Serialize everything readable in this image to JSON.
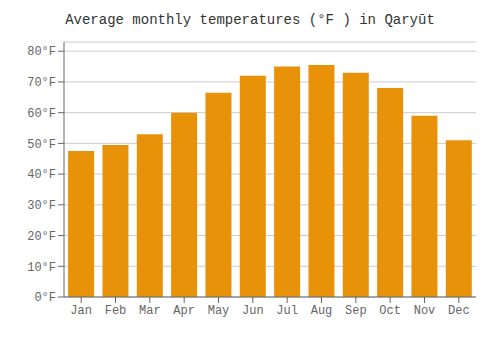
{
  "chart_data": {
    "type": "bar",
    "title": "Average monthly temperatures (°F ) in Qaryūt",
    "categories": [
      "Jan",
      "Feb",
      "Mar",
      "Apr",
      "May",
      "Jun",
      "Jul",
      "Aug",
      "Sep",
      "Oct",
      "Nov",
      "Dec"
    ],
    "values": [
      47.5,
      49.5,
      53.0,
      60.0,
      66.5,
      72.0,
      75.0,
      75.5,
      73.0,
      68.0,
      59.0,
      51.0
    ],
    "color": "#E8920A",
    "ylim": [
      0,
      83
    ],
    "yticks": [
      {
        "value": 0,
        "label": "0°F"
      },
      {
        "value": 10,
        "label": "10°F"
      },
      {
        "value": 20,
        "label": "20°F"
      },
      {
        "value": 30,
        "label": "30°F"
      },
      {
        "value": 40,
        "label": "40°F"
      },
      {
        "value": 50,
        "label": "50°F"
      },
      {
        "value": 60,
        "label": "60°F"
      },
      {
        "value": 70,
        "label": "70°F"
      },
      {
        "value": 80,
        "label": "80°F"
      }
    ],
    "grid": true
  }
}
